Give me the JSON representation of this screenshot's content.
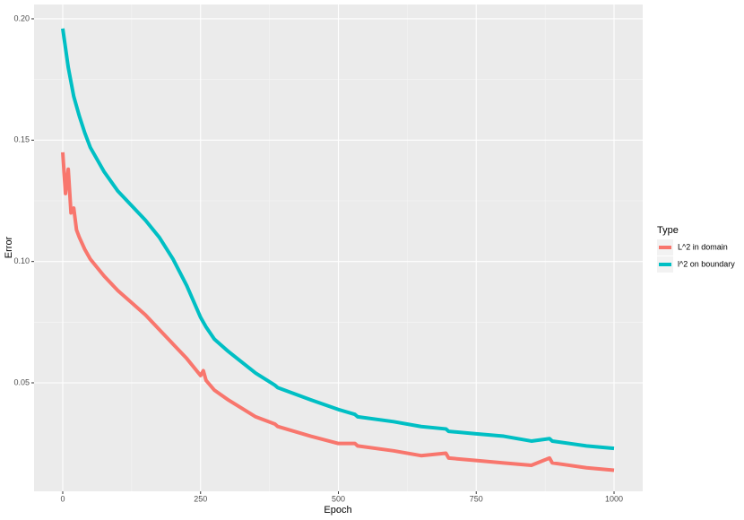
{
  "chart_data": {
    "type": "line",
    "x_label": "Epoch",
    "y_label": "Error",
    "legend_title": "Type",
    "x": [
      0,
      5,
      10,
      15,
      20,
      25,
      30,
      40,
      50,
      75,
      100,
      125,
      150,
      175,
      200,
      225,
      250,
      255,
      260,
      275,
      300,
      350,
      385,
      390,
      450,
      500,
      530,
      535,
      600,
      650,
      695,
      700,
      750,
      800,
      850,
      883,
      888,
      950,
      1000
    ],
    "series": [
      {
        "name": "L^2 in domain",
        "color": "#F8766D",
        "values": [
          0.145,
          0.128,
          0.138,
          0.12,
          0.122,
          0.113,
          0.11,
          0.105,
          0.101,
          0.094,
          0.088,
          0.083,
          0.078,
          0.072,
          0.066,
          0.06,
          0.053,
          0.055,
          0.051,
          0.047,
          0.043,
          0.036,
          0.033,
          0.032,
          0.028,
          0.025,
          0.025,
          0.024,
          0.022,
          0.02,
          0.021,
          0.019,
          0.018,
          0.017,
          0.016,
          0.019,
          0.017,
          0.015,
          0.014
        ]
      },
      {
        "name": "l^2 on boundary",
        "color": "#00BFC4",
        "values": [
          0.196,
          0.188,
          0.18,
          0.174,
          0.168,
          0.164,
          0.16,
          0.153,
          0.147,
          0.137,
          0.129,
          0.123,
          0.117,
          0.11,
          0.101,
          0.09,
          0.077,
          0.075,
          0.073,
          0.068,
          0.063,
          0.054,
          0.049,
          0.048,
          0.043,
          0.039,
          0.037,
          0.036,
          0.034,
          0.032,
          0.031,
          0.03,
          0.029,
          0.028,
          0.026,
          0.027,
          0.026,
          0.024,
          0.023
        ]
      }
    ],
    "xlim": [
      -52,
      1052
    ],
    "xticks": [
      0,
      250,
      500,
      750,
      1000
    ],
    "ylim": [
      0.0053,
      0.2059
    ],
    "yticks": [
      0.05,
      {
        "value": 0.1,
        "label": "0.10"
      },
      0.15,
      {
        "value": 0.2,
        "label": "0.20"
      }
    ],
    "grid": true
  }
}
